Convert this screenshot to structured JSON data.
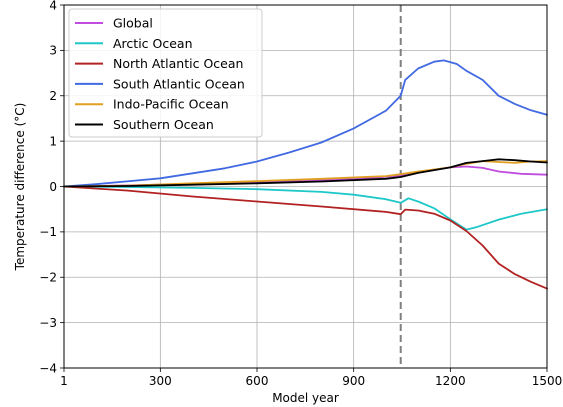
{
  "chart_data": {
    "type": "line",
    "title": "",
    "xlabel": "Model year",
    "ylabel": "Temperature difference (°C)",
    "xlim": [
      1,
      1500
    ],
    "ylim": [
      -4,
      4
    ],
    "x_ticks": [
      1,
      300,
      600,
      900,
      1200,
      1500
    ],
    "x_tick_labels": [
      "1",
      "300",
      "600",
      "900",
      "1200",
      "1500"
    ],
    "y_ticks": [
      -4,
      -3,
      -2,
      -1,
      0,
      1,
      2,
      3,
      4
    ],
    "y_tick_labels": [
      "−4",
      "−3",
      "−2",
      "−1",
      "0",
      "1",
      "2",
      "3",
      "4"
    ],
    "grid": true,
    "legend_position": "upper-left",
    "vertical_line": {
      "x": 1046,
      "style": "dashed",
      "color": "#808080"
    },
    "series": [
      {
        "name": "Global",
        "color": "#c04ce0",
        "points": [
          [
            1,
            0
          ],
          [
            100,
            0.01
          ],
          [
            300,
            0.04
          ],
          [
            500,
            0.07
          ],
          [
            700,
            0.11
          ],
          [
            900,
            0.16
          ],
          [
            1046,
            0.24
          ],
          [
            1100,
            0.32
          ],
          [
            1200,
            0.42
          ],
          [
            1250,
            0.44
          ],
          [
            1300,
            0.41
          ],
          [
            1350,
            0.33
          ],
          [
            1420,
            0.28
          ],
          [
            1500,
            0.26
          ]
        ]
      },
      {
        "name": "Arctic Ocean",
        "color": "#1ec8c8",
        "points": [
          [
            1,
            0
          ],
          [
            200,
            -0.01
          ],
          [
            400,
            -0.03
          ],
          [
            600,
            -0.06
          ],
          [
            800,
            -0.12
          ],
          [
            900,
            -0.18
          ],
          [
            1000,
            -0.28
          ],
          [
            1046,
            -0.36
          ],
          [
            1070,
            -0.26
          ],
          [
            1100,
            -0.33
          ],
          [
            1150,
            -0.48
          ],
          [
            1200,
            -0.72
          ],
          [
            1250,
            -0.95
          ],
          [
            1280,
            -0.9
          ],
          [
            1350,
            -0.73
          ],
          [
            1420,
            -0.6
          ],
          [
            1500,
            -0.5
          ]
        ]
      },
      {
        "name": "North Atlantic Ocean",
        "color": "#b22222",
        "points": [
          [
            1,
            0
          ],
          [
            200,
            -0.09
          ],
          [
            400,
            -0.22
          ],
          [
            600,
            -0.33
          ],
          [
            800,
            -0.44
          ],
          [
            1000,
            -0.56
          ],
          [
            1046,
            -0.61
          ],
          [
            1060,
            -0.51
          ],
          [
            1100,
            -0.53
          ],
          [
            1150,
            -0.6
          ],
          [
            1200,
            -0.75
          ],
          [
            1250,
            -0.98
          ],
          [
            1300,
            -1.3
          ],
          [
            1350,
            -1.7
          ],
          [
            1400,
            -1.93
          ],
          [
            1450,
            -2.1
          ],
          [
            1500,
            -2.25
          ]
        ]
      },
      {
        "name": "South Atlantic Ocean",
        "color": "#4169e1",
        "points": [
          [
            1,
            0
          ],
          [
            100,
            0.05
          ],
          [
            300,
            0.18
          ],
          [
            500,
            0.4
          ],
          [
            600,
            0.55
          ],
          [
            700,
            0.75
          ],
          [
            800,
            0.97
          ],
          [
            900,
            1.28
          ],
          [
            1000,
            1.67
          ],
          [
            1046,
            2.0
          ],
          [
            1060,
            2.35
          ],
          [
            1100,
            2.6
          ],
          [
            1150,
            2.75
          ],
          [
            1180,
            2.78
          ],
          [
            1220,
            2.7
          ],
          [
            1250,
            2.55
          ],
          [
            1300,
            2.35
          ],
          [
            1350,
            2.0
          ],
          [
            1400,
            1.82
          ],
          [
            1450,
            1.68
          ],
          [
            1500,
            1.58
          ]
        ]
      },
      {
        "name": "Indo-Pacific Ocean",
        "color": "#e0a020",
        "points": [
          [
            1,
            0
          ],
          [
            200,
            0.02
          ],
          [
            400,
            0.07
          ],
          [
            600,
            0.12
          ],
          [
            800,
            0.17
          ],
          [
            1000,
            0.23
          ],
          [
            1046,
            0.27
          ],
          [
            1100,
            0.33
          ],
          [
            1200,
            0.42
          ],
          [
            1250,
            0.5
          ],
          [
            1300,
            0.56
          ],
          [
            1350,
            0.54
          ],
          [
            1400,
            0.52
          ],
          [
            1450,
            0.55
          ],
          [
            1500,
            0.56
          ]
        ]
      },
      {
        "name": "Southern Ocean",
        "color": "#000000",
        "points": [
          [
            1,
            0
          ],
          [
            200,
            0.01
          ],
          [
            400,
            0.04
          ],
          [
            600,
            0.07
          ],
          [
            800,
            0.11
          ],
          [
            1000,
            0.17
          ],
          [
            1046,
            0.21
          ],
          [
            1100,
            0.3
          ],
          [
            1200,
            0.42
          ],
          [
            1250,
            0.52
          ],
          [
            1300,
            0.56
          ],
          [
            1350,
            0.6
          ],
          [
            1400,
            0.58
          ],
          [
            1450,
            0.55
          ],
          [
            1500,
            0.53
          ]
        ]
      }
    ]
  }
}
